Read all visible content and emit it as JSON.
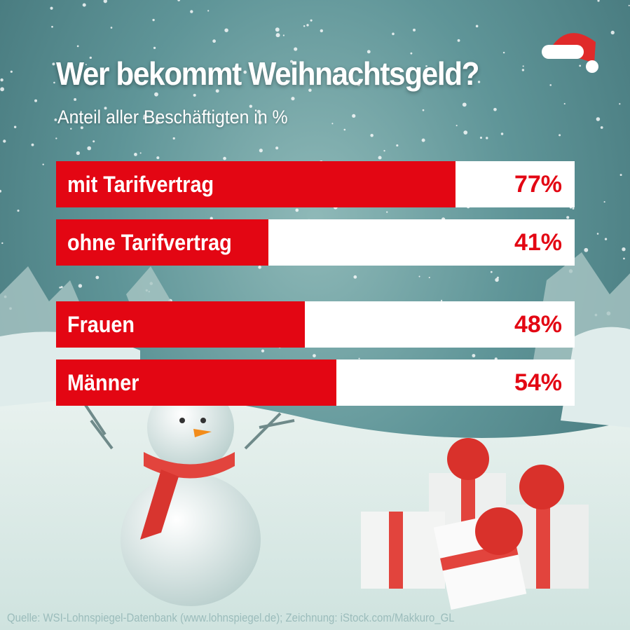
{
  "chart_data": {
    "type": "bar",
    "orientation": "horizontal",
    "title": "Wer bekommt Weihnachtsgeld?",
    "subtitle": "Anteil aller Beschäftigten in %",
    "categories": [
      "mit Tarifvertrag",
      "ohne Tarifvertrag",
      "Frauen",
      "Männer"
    ],
    "values": [
      77,
      41,
      48,
      54
    ],
    "value_labels": [
      "77%",
      "41%",
      "48%",
      "54%"
    ],
    "xlim": [
      0,
      100
    ],
    "grid": false,
    "bar_color": "#e30613",
    "track_color": "#ffffff"
  },
  "source": "Quelle: WSI-Lohnspiegel-Datenbank (www.lohnspiegel.de); Zeichnung: iStock.com/Makkuro_GL"
}
